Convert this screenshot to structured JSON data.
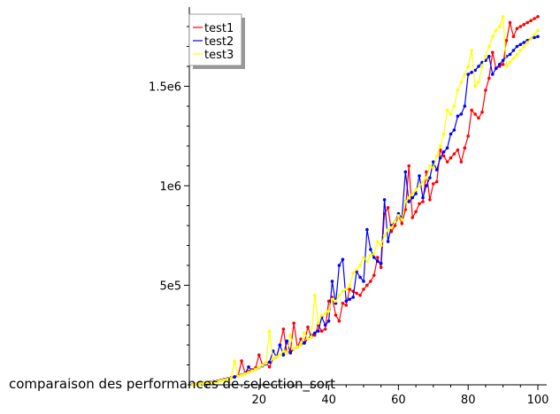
{
  "chart_data": {
    "type": "line",
    "title": "comparaison des performances de selection_sort",
    "xlabel": "",
    "ylabel": "",
    "xlim": [
      0,
      102
    ],
    "ylim": [
      0,
      1880000
    ],
    "x_ticks": [
      {
        "value": 20,
        "label": "20"
      },
      {
        "value": 40,
        "label": "40"
      },
      {
        "value": 60,
        "label": "60"
      },
      {
        "value": 80,
        "label": "80"
      },
      {
        "value": 100,
        "label": "100"
      }
    ],
    "y_ticks": [
      {
        "value": 500000,
        "label": "5e5"
      },
      {
        "value": 1000000,
        "label": "1e6"
      },
      {
        "value": 1500000,
        "label": "1.5e6"
      }
    ],
    "legend_position": "top-left",
    "grid": false,
    "x": [
      1,
      2,
      3,
      4,
      5,
      6,
      7,
      8,
      9,
      10,
      11,
      12,
      13,
      14,
      15,
      16,
      17,
      18,
      19,
      20,
      21,
      22,
      23,
      24,
      25,
      26,
      27,
      28,
      29,
      30,
      31,
      32,
      33,
      34,
      35,
      36,
      37,
      38,
      39,
      40,
      41,
      42,
      43,
      44,
      45,
      46,
      47,
      48,
      49,
      50,
      51,
      52,
      53,
      54,
      55,
      56,
      57,
      58,
      59,
      60,
      61,
      62,
      63,
      64,
      65,
      66,
      67,
      68,
      69,
      70,
      71,
      72,
      73,
      74,
      75,
      76,
      77,
      78,
      79,
      80,
      81,
      82,
      83,
      84,
      85,
      86,
      87,
      88,
      89,
      90,
      91,
      92,
      93,
      94,
      95,
      96,
      97,
      98,
      99,
      100
    ],
    "series": [
      {
        "name": "test1",
        "color": "#ff0000",
        "values": [
          2000,
          4000,
          6000,
          8000,
          10000,
          13000,
          16000,
          19000,
          23000,
          27000,
          31000,
          36000,
          41000,
          46000,
          120000,
          60000,
          68000,
          76000,
          85000,
          150000,
          100000,
          110000,
          90000,
          130000,
          140000,
          200000,
          280000,
          160000,
          170000,
          310000,
          190000,
          230000,
          210000,
          290000,
          240000,
          250000,
          300000,
          270000,
          280000,
          420000,
          440000,
          350000,
          320000,
          410000,
          400000,
          480000,
          470000,
          460000,
          450000,
          480000,
          500000,
          520000,
          550000,
          640000,
          590000,
          860000,
          890000,
          770000,
          800000,
          850000,
          810000,
          880000,
          1100000,
          840000,
          870000,
          910000,
          920000,
          1070000,
          930000,
          1010000,
          1020000,
          1180000,
          1150000,
          1120000,
          1140000,
          1160000,
          1180000,
          1120000,
          1190000,
          1250000,
          1380000,
          1360000,
          1340000,
          1370000,
          1480000,
          1540000,
          1670000,
          1590000,
          1600000,
          1610000,
          1730000,
          1820000,
          1750000,
          1790000,
          1800000,
          1810000,
          1820000,
          1830000,
          1840000,
          1850000
        ]
      },
      {
        "name": "test2",
        "color": "#0000ff",
        "values": [
          2000,
          3000,
          5000,
          7000,
          9000,
          12000,
          15000,
          18000,
          22000,
          26000,
          30000,
          34000,
          39000,
          44000,
          50000,
          56000,
          90000,
          70000,
          78000,
          86000,
          95000,
          104000,
          114000,
          170000,
          140000,
          200000,
          150000,
          220000,
          160000,
          180000,
          190000,
          200000,
          210000,
          230000,
          250000,
          260000,
          270000,
          340000,
          300000,
          320000,
          520000,
          410000,
          600000,
          630000,
          420000,
          430000,
          440000,
          570000,
          540000,
          520000,
          780000,
          680000,
          640000,
          620000,
          610000,
          930000,
          720000,
          800000,
          820000,
          860000,
          840000,
          1070000,
          920000,
          940000,
          960000,
          1050000,
          940000,
          1000000,
          1040000,
          1120000,
          1080000,
          1140000,
          1170000,
          1190000,
          1260000,
          1280000,
          1350000,
          1360000,
          1400000,
          1560000,
          1570000,
          1580000,
          1600000,
          1620000,
          1630000,
          1650000,
          1560000,
          1590000,
          1610000,
          1630000,
          1650000,
          1660000,
          1680000,
          1700000,
          1710000,
          1720000,
          1730000,
          1740000,
          1745000,
          1750000
        ]
      },
      {
        "name": "test3",
        "color": "#ffff00",
        "values": [
          1000,
          3000,
          5000,
          6000,
          8000,
          10000,
          14000,
          17000,
          21000,
          24000,
          28000,
          33000,
          120000,
          43000,
          48000,
          55000,
          62000,
          70000,
          78000,
          88000,
          98000,
          108000,
          270000,
          130000,
          140000,
          150000,
          170000,
          160000,
          250000,
          180000,
          190000,
          200000,
          260000,
          230000,
          240000,
          450000,
          310000,
          350000,
          360000,
          370000,
          430000,
          420000,
          450000,
          470000,
          480000,
          500000,
          560000,
          580000,
          600000,
          640000,
          620000,
          650000,
          660000,
          720000,
          700000,
          750000,
          780000,
          790000,
          820000,
          850000,
          830000,
          920000,
          940000,
          960000,
          980000,
          1000000,
          1020000,
          1040000,
          1100000,
          1090000,
          1150000,
          1200000,
          1260000,
          1380000,
          1360000,
          1400000,
          1480000,
          1520000,
          1560000,
          1600000,
          1680000,
          1500000,
          1520000,
          1600000,
          1650000,
          1700000,
          1750000,
          1780000,
          1800000,
          1850000,
          1600000,
          1620000,
          1640000,
          1660000,
          1680000,
          1700000,
          1720000,
          1740000,
          1760000,
          1780000
        ]
      }
    ]
  }
}
